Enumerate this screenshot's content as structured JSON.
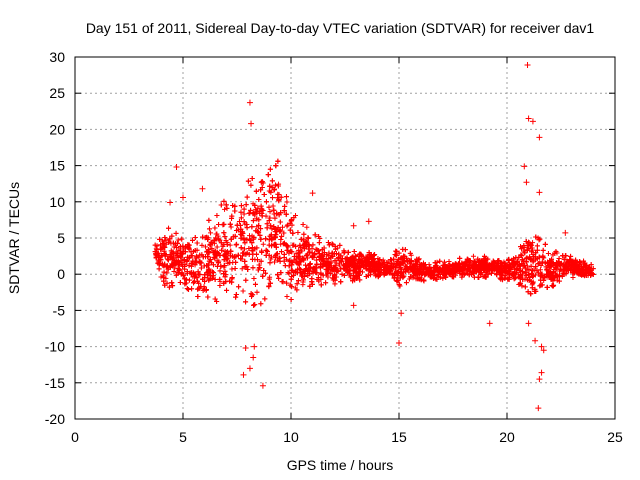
{
  "chart_data": {
    "type": "scatter",
    "title": "Day 151 of 2011, Sidereal Day-to-day VTEC variation (SDTVAR) for receiver dav1",
    "xlabel": "GPS time / hours",
    "ylabel": "SDTVAR / TECUs",
    "xlim": [
      0,
      25
    ],
    "ylim": [
      -20,
      30
    ],
    "xticks": [
      0,
      5,
      10,
      15,
      20,
      25
    ],
    "yticks": [
      -20,
      -15,
      -10,
      -5,
      0,
      5,
      10,
      15,
      20,
      25,
      30
    ],
    "grid": true,
    "marker": "+",
    "color": "#ff0000",
    "series": [
      {
        "name": "dav1",
        "band": [
          {
            "x": 3.7,
            "lo": 0,
            "hi": 5
          },
          {
            "x": 4.0,
            "lo": -1,
            "hi": 6
          },
          {
            "x": 4.3,
            "lo": -2,
            "hi": 7
          },
          {
            "x": 4.6,
            "lo": -2,
            "hi": 6.5
          },
          {
            "x": 5.0,
            "lo": -1.5,
            "hi": 5
          },
          {
            "x": 5.5,
            "lo": -3,
            "hi": 5
          },
          {
            "x": 6.0,
            "lo": -3.5,
            "hi": 6.5
          },
          {
            "x": 6.5,
            "lo": -4,
            "hi": 9
          },
          {
            "x": 7.0,
            "lo": -4,
            "hi": 10.5
          },
          {
            "x": 7.5,
            "lo": -3.5,
            "hi": 13
          },
          {
            "x": 8.0,
            "lo": -5,
            "hi": 15
          },
          {
            "x": 8.5,
            "lo": -4.5,
            "hi": 15.5
          },
          {
            "x": 9.0,
            "lo": -3.5,
            "hi": 16
          },
          {
            "x": 9.5,
            "lo": -3,
            "hi": 15.5
          },
          {
            "x": 10.0,
            "lo": -4,
            "hi": 8
          },
          {
            "x": 10.5,
            "lo": -4,
            "hi": 8.5
          },
          {
            "x": 11.0,
            "lo": -3,
            "hi": 6
          },
          {
            "x": 11.5,
            "lo": -2,
            "hi": 5
          },
          {
            "x": 12.0,
            "lo": -1.5,
            "hi": 4
          },
          {
            "x": 12.5,
            "lo": -1,
            "hi": 4.5
          },
          {
            "x": 13.0,
            "lo": -1,
            "hi": 3.5
          },
          {
            "x": 13.5,
            "lo": -0.5,
            "hi": 3.5
          },
          {
            "x": 14.0,
            "lo": -0.5,
            "hi": 2.5
          },
          {
            "x": 14.5,
            "lo": -0.5,
            "hi": 2
          },
          {
            "x": 15.0,
            "lo": -2.5,
            "hi": 4
          },
          {
            "x": 15.5,
            "lo": -1,
            "hi": 3
          },
          {
            "x": 16.0,
            "lo": -1,
            "hi": 2
          },
          {
            "x": 16.5,
            "lo": -1,
            "hi": 2
          },
          {
            "x": 17.0,
            "lo": -1,
            "hi": 2
          },
          {
            "x": 17.5,
            "lo": -0.5,
            "hi": 2
          },
          {
            "x": 18.0,
            "lo": -0.5,
            "hi": 2.5
          },
          {
            "x": 18.5,
            "lo": -0.5,
            "hi": 2.5
          },
          {
            "x": 19.0,
            "lo": -0.5,
            "hi": 2.5
          },
          {
            "x": 19.5,
            "lo": -0.5,
            "hi": 2.5
          },
          {
            "x": 20.0,
            "lo": -1,
            "hi": 2
          },
          {
            "x": 20.5,
            "lo": -2,
            "hi": 3
          },
          {
            "x": 21.0,
            "lo": -4,
            "hi": 8
          },
          {
            "x": 21.5,
            "lo": -3,
            "hi": 5
          },
          {
            "x": 22.0,
            "lo": -2,
            "hi": 3.5
          },
          {
            "x": 22.5,
            "lo": -1,
            "hi": 3
          },
          {
            "x": 23.0,
            "lo": -0.5,
            "hi": 2.5
          },
          {
            "x": 23.5,
            "lo": -0.5,
            "hi": 2
          },
          {
            "x": 24.0,
            "lo": -0.5,
            "hi": 1.5
          }
        ],
        "outliers": [
          {
            "x": 8.1,
            "y": 23.7
          },
          {
            "x": 8.15,
            "y": 20.8
          },
          {
            "x": 4.7,
            "y": 14.8
          },
          {
            "x": 5.0,
            "y": 10.6
          },
          {
            "x": 4.4,
            "y": 9.9
          },
          {
            "x": 5.9,
            "y": 11.8
          },
          {
            "x": 11.0,
            "y": 11.2
          },
          {
            "x": 12.9,
            "y": 6.7
          },
          {
            "x": 13.6,
            "y": 7.3
          },
          {
            "x": 8.3,
            "y": -10.0
          },
          {
            "x": 8.25,
            "y": -11.5
          },
          {
            "x": 7.9,
            "y": -10.2
          },
          {
            "x": 7.8,
            "y": -13.9
          },
          {
            "x": 8.1,
            "y": -13.0
          },
          {
            "x": 8.7,
            "y": -15.4
          },
          {
            "x": 12.9,
            "y": -4.3
          },
          {
            "x": 15.0,
            "y": -9.5
          },
          {
            "x": 15.1,
            "y": -5.4
          },
          {
            "x": 19.2,
            "y": -6.8
          },
          {
            "x": 20.95,
            "y": 28.9
          },
          {
            "x": 21.0,
            "y": 21.5
          },
          {
            "x": 21.2,
            "y": 21.1
          },
          {
            "x": 21.5,
            "y": 18.9
          },
          {
            "x": 20.8,
            "y": 14.9
          },
          {
            "x": 20.9,
            "y": 12.7
          },
          {
            "x": 21.5,
            "y": 11.3
          },
          {
            "x": 21.3,
            "y": -9.2
          },
          {
            "x": 21.6,
            "y": -10.0
          },
          {
            "x": 21.7,
            "y": -10.5
          },
          {
            "x": 21.6,
            "y": -13.6
          },
          {
            "x": 21.5,
            "y": -14.5
          },
          {
            "x": 21.45,
            "y": -18.5
          },
          {
            "x": 21.0,
            "y": -6.8
          },
          {
            "x": 22.7,
            "y": 5.7
          }
        ]
      }
    ]
  }
}
